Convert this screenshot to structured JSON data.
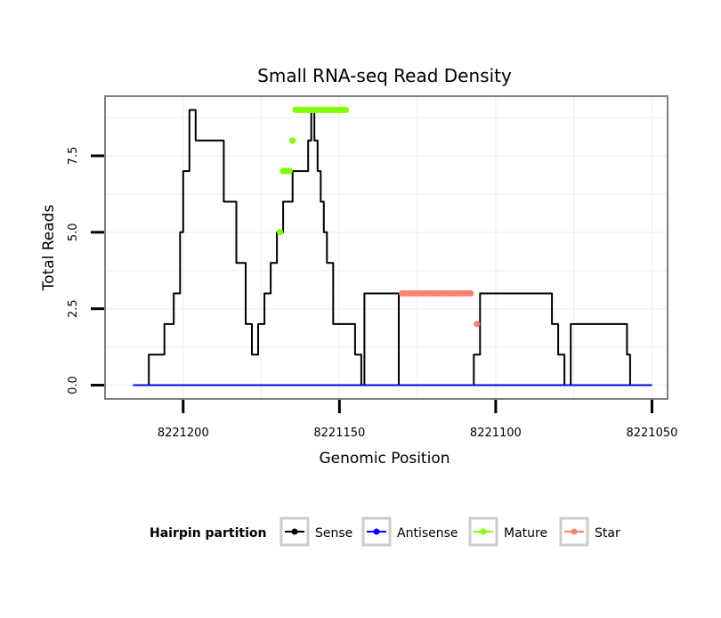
{
  "chart_data": {
    "type": "line",
    "title": "Small RNA-seq Read Density",
    "xlabel": "Genomic Position",
    "ylabel": "Total Reads",
    "xlim": [
      8221225,
      8221045
    ],
    "ylim": [
      -0.45,
      9.45
    ],
    "x_reversed": true,
    "grid": true,
    "x_ticks": [
      8221200,
      8221150,
      8221100,
      8221050
    ],
    "x_tick_labels": [
      "8221200",
      "8221150",
      "8221100",
      "8221050"
    ],
    "y_ticks": [
      0,
      2.5,
      5,
      7.5
    ],
    "y_tick_labels": [
      "0.0",
      "2.5",
      "5.0",
      "7.5"
    ],
    "legend": {
      "title": "Hairpin partition",
      "position": "bottom",
      "entries": [
        "Sense",
        "Antisense",
        "Mature",
        "Star"
      ]
    },
    "series": [
      {
        "name": "Sense",
        "color": "#000000",
        "style": "step-line",
        "x": [
          8221216,
          8221211,
          8221211,
          8221206,
          8221206,
          8221203,
          8221203,
          8221201,
          8221201,
          8221200,
          8221200,
          8221198,
          8221198,
          8221196,
          8221196,
          8221187,
          8221187,
          8221183,
          8221183,
          8221180,
          8221180,
          8221178,
          8221178,
          8221176,
          8221176,
          8221174,
          8221174,
          8221172,
          8221172,
          8221170,
          8221170,
          8221168,
          8221168,
          8221165,
          8221165,
          8221160,
          8221160,
          8221159,
          8221159,
          8221158,
          8221158,
          8221157,
          8221157,
          8221156,
          8221156,
          8221155,
          8221155,
          8221154,
          8221154,
          8221152,
          8221152,
          8221145,
          8221145,
          8221143,
          8221143,
          8221142,
          8221142,
          8221131,
          8221131,
          8221107,
          8221107,
          8221105,
          8221105,
          8221082,
          8221082,
          8221080,
          8221080,
          8221078,
          8221078,
          8221076,
          8221076,
          8221058,
          8221058,
          8221057,
          8221057,
          8221054,
          8221054,
          8221050
        ],
        "y": [
          0,
          0,
          1,
          1,
          2,
          2,
          3,
          3,
          5,
          5,
          7,
          7,
          9,
          9,
          8,
          8,
          6,
          6,
          4,
          4,
          2,
          2,
          1,
          1,
          2,
          2,
          3,
          3,
          4,
          4,
          5,
          5,
          6,
          6,
          7,
          7,
          8,
          8,
          9,
          9,
          8,
          8,
          7,
          7,
          6,
          6,
          5,
          5,
          4,
          4,
          2,
          2,
          1,
          1,
          0,
          0,
          3,
          3,
          0,
          0,
          1,
          1,
          3,
          3,
          2,
          2,
          1,
          1,
          0,
          0,
          2,
          2,
          1,
          1,
          0,
          0,
          0,
          0
        ]
      },
      {
        "name": "Antisense",
        "color": "#0000ff",
        "style": "line",
        "x": [
          8221216,
          8221050
        ],
        "y": [
          0,
          0
        ]
      },
      {
        "name": "Mature",
        "color": "#7fff00",
        "style": "points",
        "x": [
          8221169,
          8221168,
          8221167,
          8221166,
          8221165,
          8221164,
          8221163,
          8221162,
          8221161,
          8221160,
          8221159,
          8221158,
          8221157,
          8221156,
          8221155,
          8221154,
          8221153,
          8221152,
          8221151,
          8221150,
          8221149,
          8221148
        ],
        "y": [
          5,
          7,
          7,
          7,
          8,
          9,
          9,
          9,
          9,
          9,
          9,
          9,
          9,
          9,
          9,
          9,
          9,
          9,
          9,
          9,
          9,
          9
        ]
      },
      {
        "name": "Star",
        "color": "#fa8072",
        "style": "points",
        "x": [
          8221130,
          8221129,
          8221128,
          8221127,
          8221126,
          8221125,
          8221124,
          8221123,
          8221122,
          8221121,
          8221120,
          8221119,
          8221118,
          8221117,
          8221116,
          8221115,
          8221114,
          8221113,
          8221112,
          8221111,
          8221110,
          8221109,
          8221108,
          8221106
        ],
        "y": [
          3,
          3,
          3,
          3,
          3,
          3,
          3,
          3,
          3,
          3,
          3,
          3,
          3,
          3,
          3,
          3,
          3,
          3,
          3,
          3,
          3,
          3,
          3,
          2
        ]
      }
    ]
  }
}
